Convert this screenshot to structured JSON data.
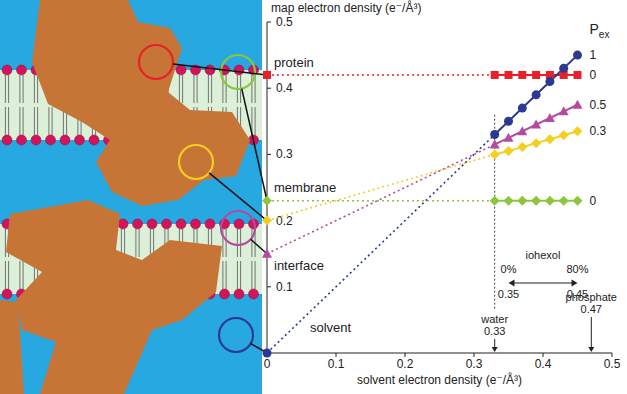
{
  "chart_data": {
    "type": "line",
    "xlabel": "solvent electron density (e⁻/Å³)",
    "ylabel": "map electron density (e⁻/Å³)",
    "xlim": [
      0,
      0.5
    ],
    "xticks": [
      0,
      0.1,
      0.2,
      0.3,
      0.4,
      0.5
    ],
    "ylim": [
      0,
      0.5
    ],
    "yticks": [
      0.1,
      0.2,
      0.3,
      0.4,
      0.5
    ],
    "x": [
      0,
      0.33,
      0.35,
      0.37,
      0.39,
      0.41,
      0.43,
      0.45
    ],
    "pex_title": {
      "text": "P",
      "subscript": "ex"
    },
    "series": [
      {
        "name": "protein",
        "color": "#e8202a",
        "marker": "square",
        "pex": 0,
        "values": [
          0.42,
          0.42,
          0.42,
          0.42,
          0.42,
          0.42,
          0.42,
          0.42
        ]
      },
      {
        "name": "membrane",
        "color": "#8cc63f",
        "marker": "diamond",
        "pex": 0,
        "values": [
          0.23,
          0.23,
          0.23,
          0.23,
          0.23,
          0.23,
          0.23,
          0.23
        ]
      },
      {
        "name": null,
        "color": "#f5cf1f",
        "marker": "diamond",
        "pex": 0.3,
        "values": [
          0.2,
          0.3,
          0.305,
          0.311,
          0.317,
          0.323,
          0.329,
          0.335
        ]
      },
      {
        "name": "interface",
        "color": "#b44b9e",
        "marker": "triangle",
        "pex": 0.5,
        "values": [
          0.15,
          0.315,
          0.325,
          0.335,
          0.345,
          0.355,
          0.365,
          0.375
        ]
      },
      {
        "name": "solvent",
        "color": "#2b3990",
        "marker": "circle",
        "pex": 1,
        "values": [
          0,
          0.33,
          0.35,
          0.37,
          0.39,
          0.41,
          0.43,
          0.45
        ]
      }
    ],
    "annotations": {
      "iohexol": {
        "label": "iohexol",
        "start_label": "0%",
        "end_label": "80%",
        "range": [
          0.35,
          0.45
        ]
      },
      "markers": [
        {
          "label": "water",
          "value": 0.33
        },
        {
          "label": "phosphate",
          "value": 0.47
        }
      ]
    }
  }
}
